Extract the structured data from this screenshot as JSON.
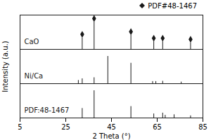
{
  "chart_data": {
    "type": "stick",
    "xlabel": "2 Theta (°)",
    "ylabel": "Intensity (a.u.)",
    "xlim": [
      5,
      85
    ],
    "xticks": [
      5,
      25,
      45,
      65,
      85
    ],
    "ylim": [
      0,
      1
    ],
    "tick_labels": "x",
    "color": "#1a1a1a",
    "legend": "upper right",
    "marker_legend": {
      "label": "PDF#48-1467",
      "marker": "diamond"
    },
    "series": [
      {
        "name": "CaO",
        "x": [
          32.2,
          37.4,
          53.5,
          63.5,
          67.4,
          79.6
        ],
        "values": [
          0.42,
          1.0,
          0.52,
          0.28,
          0.28,
          0.24
        ],
        "marked": [
          true,
          true,
          true,
          true,
          true,
          true
        ]
      },
      {
        "name": "Ni/Ca",
        "x": [
          30.5,
          32.2,
          37.4,
          43.4,
          53.5,
          63.0,
          64.4,
          67.4,
          75.5
        ],
        "values": [
          0.12,
          0.18,
          0.22,
          1.0,
          0.75,
          0.08,
          0.08,
          0.09,
          0.06
        ],
        "marked": [
          false,
          false,
          false,
          false,
          false,
          false,
          false,
          false,
          false
        ]
      },
      {
        "name": "PDF:48-1467",
        "x": [
          32.2,
          37.4,
          53.5,
          63.5,
          67.4,
          68.5,
          72.4,
          79.6
        ],
        "values": [
          0.35,
          1.0,
          0.42,
          0.15,
          0.18,
          0.1,
          0.12,
          0.08
        ],
        "marked": [
          false,
          false,
          false,
          false,
          false,
          false,
          false,
          false
        ]
      }
    ]
  }
}
